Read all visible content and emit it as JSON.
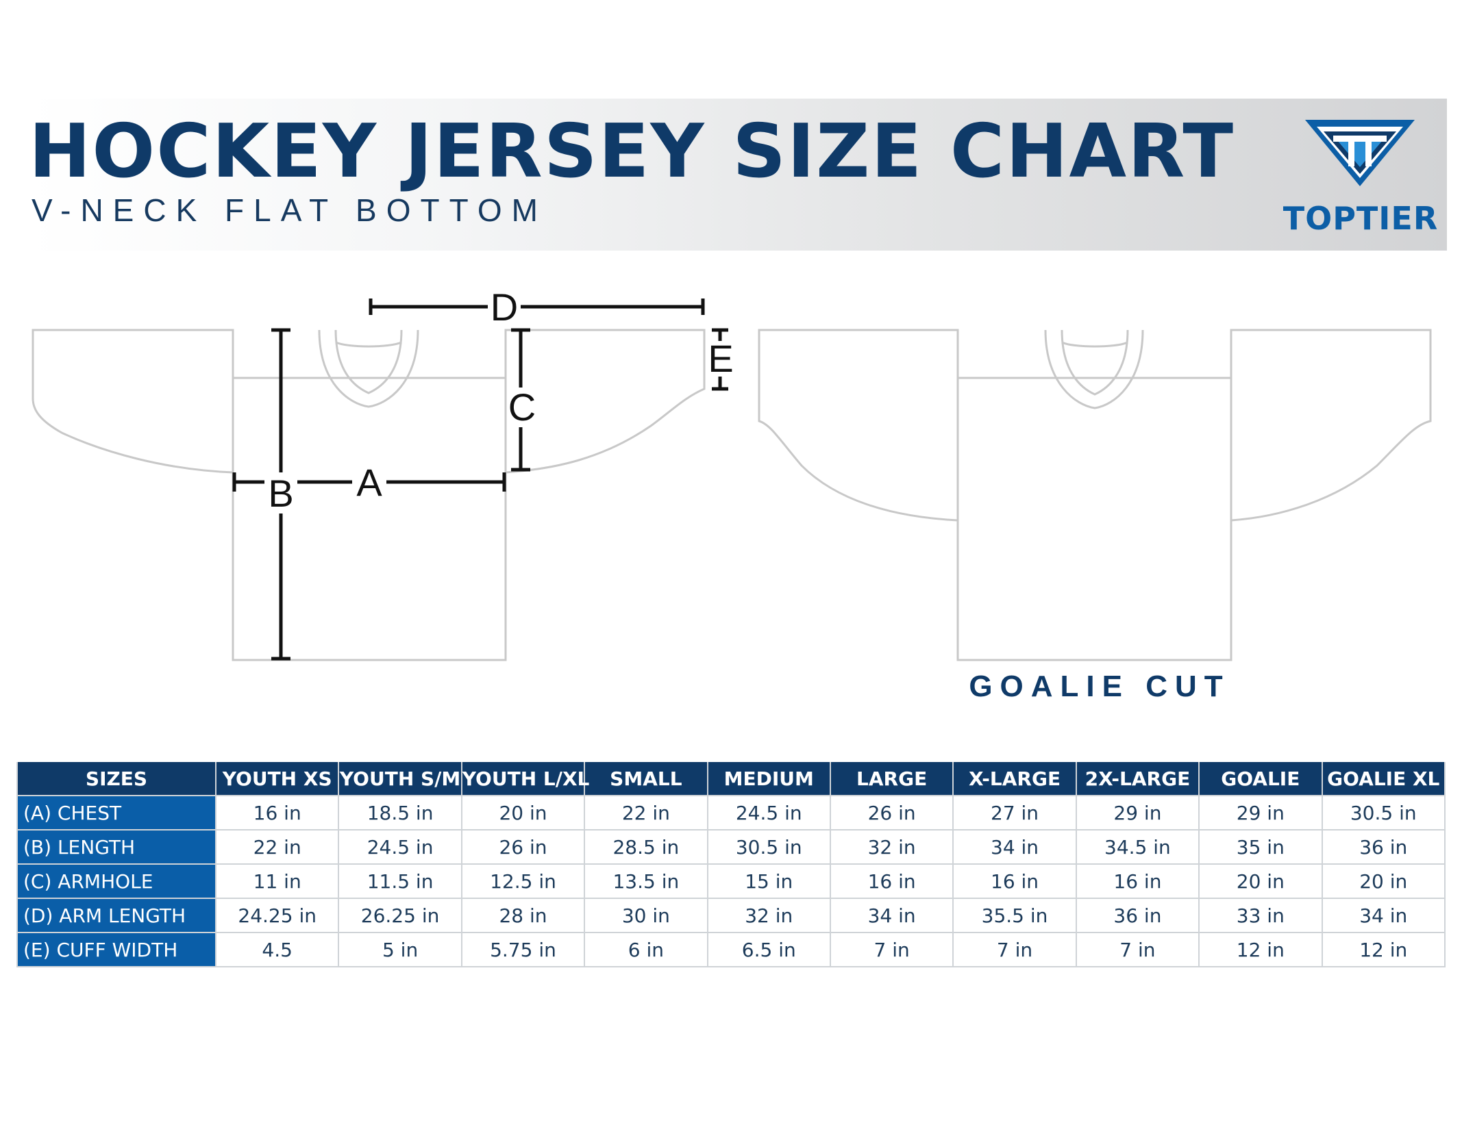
{
  "header": {
    "title": "HOCKEY JERSEY SIZE CHART",
    "subtitle": "V-NECK FLAT BOTTOM",
    "logo_text": "TOPTIER"
  },
  "diagram": {
    "labels": {
      "a": "A",
      "b": "B",
      "c": "C",
      "d": "D",
      "e": "E"
    },
    "goalie_label": "GOALIE CUT"
  },
  "table": {
    "headers": [
      "SIZES",
      "YOUTH XS",
      "YOUTH S/M",
      "YOUTH L/XL",
      "SMALL",
      "MEDIUM",
      "LARGE",
      "X-LARGE",
      "2X-LARGE",
      "GOALIE",
      "GOALIE XL"
    ],
    "rows": [
      {
        "label": "(A) CHEST",
        "values": [
          "16 in",
          "18.5 in",
          "20 in",
          "22 in",
          "24.5 in",
          "26 in",
          "27 in",
          "29 in",
          "29 in",
          "30.5 in"
        ]
      },
      {
        "label": "(B) LENGTH",
        "values": [
          "22 in",
          "24.5 in",
          "26 in",
          "28.5 in",
          "30.5 in",
          "32 in",
          "34 in",
          "34.5 in",
          "35 in",
          "36 in"
        ]
      },
      {
        "label": "(C) ARMHOLE",
        "values": [
          "11 in",
          "11.5 in",
          "12.5 in",
          "13.5 in",
          "15 in",
          "16 in",
          "16 in",
          "16 in",
          "20 in",
          "20 in"
        ]
      },
      {
        "label": "(D) ARM LENGTH",
        "values": [
          "24.25 in",
          "26.25 in",
          "28 in",
          "30 in",
          "32 in",
          "34 in",
          "35.5 in",
          "36 in",
          "33 in",
          "34 in"
        ]
      },
      {
        "label": "(E) CUFF WIDTH",
        "values": [
          "4.5",
          "5 in",
          "5.75 in",
          "6 in",
          "6.5 in",
          "7 in",
          "7 in",
          "7 in",
          "12 in",
          "12 in"
        ]
      }
    ]
  },
  "colors": {
    "navy": "#0f3a68",
    "blue": "#0a5ea8",
    "outline_gray": "#c8c8c8",
    "border_gray": "#cfd3d7"
  }
}
